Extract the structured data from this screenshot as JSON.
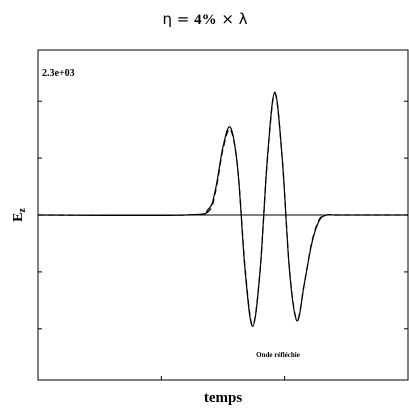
{
  "chart_data": {
    "type": "line",
    "title": {
      "prefix": "η = ",
      "value": "4%",
      "suffix": " × λ"
    },
    "ylabel": "E",
    "ylabel_sub": "z",
    "xlabel": "temps",
    "scale_label": "2.3e+03",
    "annotation": "Onde réfléchie",
    "xlim": [
      0,
      1
    ],
    "ylim": [
      -1.45,
      1.45
    ],
    "grid": false,
    "series": [
      {
        "style": "solid",
        "color": "#000000",
        "x": [
          0,
          0.4,
          0.46,
          0.48,
          0.5,
          0.52,
          0.54,
          0.56,
          0.58,
          0.6,
          0.62,
          0.64,
          0.66,
          0.68,
          0.7,
          0.72,
          0.74,
          0.76,
          0.78,
          0.8,
          0.82,
          1.0
        ],
        "y": [
          0,
          0,
          0.05,
          0.23,
          0.6,
          0.77,
          0.4,
          -0.5,
          -0.98,
          -0.5,
          0.5,
          1.08,
          0.5,
          -0.5,
          -0.93,
          -0.6,
          -0.25,
          -0.05,
          0,
          0,
          0,
          0
        ]
      },
      {
        "style": "dashed",
        "color": "#000000",
        "x": [
          0,
          0.4,
          0.46,
          0.48,
          0.5,
          0.52,
          0.54,
          0.56,
          0.58,
          0.6,
          0.62,
          0.64,
          0.66,
          0.68,
          0.7,
          0.72,
          0.74,
          0.76,
          0.78,
          0.8,
          0.82,
          1.0
        ],
        "y": [
          0,
          0,
          0.03,
          0.21,
          0.58,
          0.75,
          0.4,
          -0.48,
          -0.97,
          -0.5,
          0.49,
          1.07,
          0.5,
          -0.49,
          -0.92,
          -0.6,
          -0.24,
          -0.04,
          0,
          0,
          0,
          0
        ]
      }
    ]
  }
}
